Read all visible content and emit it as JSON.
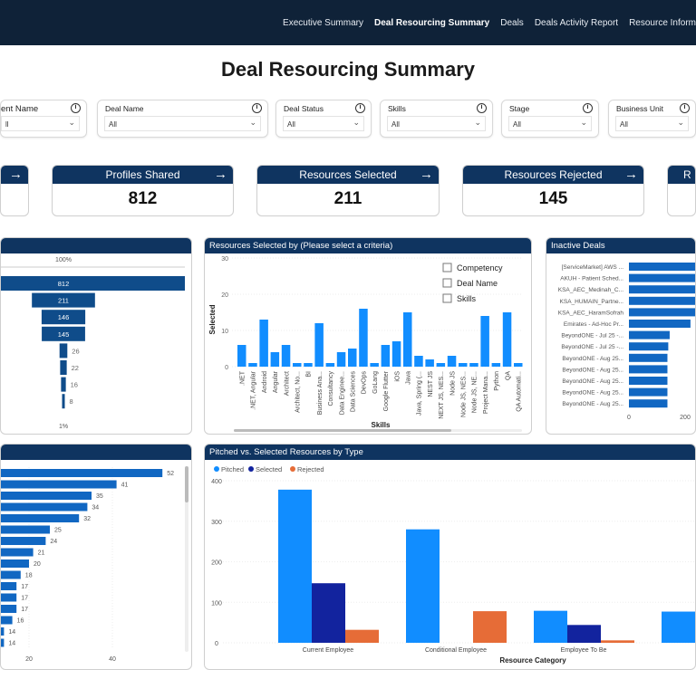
{
  "nav": {
    "items": [
      {
        "label": "Executive Summary"
      },
      {
        "label": "Deal Resourcing Summary",
        "active": true
      },
      {
        "label": "Deals"
      },
      {
        "label": "Deals Activity Report"
      },
      {
        "label": "Resource Inform"
      }
    ]
  },
  "page_title": "Deal Resourcing Summary",
  "filters": [
    {
      "label": "ent Name",
      "value": "ll"
    },
    {
      "label": "Deal Name",
      "value": "All"
    },
    {
      "label": "Deal Status",
      "value": "All"
    },
    {
      "label": "Skills",
      "value": "All"
    },
    {
      "label": "Stage",
      "value": "All"
    },
    {
      "label": "Business Unit",
      "value": "All"
    }
  ],
  "kpis": [
    {
      "label": "",
      "value": ""
    },
    {
      "label": "Profiles Shared",
      "value": "812"
    },
    {
      "label": "Resources Selected",
      "value": "211"
    },
    {
      "label": "Resources Rejected",
      "value": "145"
    },
    {
      "label": "R",
      "value": ""
    }
  ],
  "colors": {
    "header": "#0f3460",
    "nav": "#0f2238",
    "bar": "#1167c2",
    "pitched": "#118dff",
    "selected": "#12239e",
    "rejected": "#e66c37"
  },
  "chart_data": [
    {
      "type": "bar",
      "orientation": "funnel",
      "top_label": "100%",
      "bottom_label": "1%",
      "values": [
        812,
        211,
        146,
        145,
        26,
        22,
        16,
        8
      ]
    },
    {
      "type": "bar",
      "title": "Resources Selected by (Please select a criteria)",
      "xlabel": "Skills",
      "ylabel": "Selected",
      "ylim": [
        0,
        30
      ],
      "yticks": [
        0,
        10,
        20,
        30
      ],
      "categories": [
        ".NET",
        ".NET, Angular",
        "Android",
        "Angular",
        "Architect",
        "Architect, No...",
        "BI",
        "Business Ana...",
        "Consultancy",
        "Data Enginee...",
        "Data Sciences",
        "DevOps",
        "GoLang",
        "Google Flutter",
        "iOS",
        "Java",
        "Java, Spring (...",
        "NEST JS",
        "NEXT JS, NES...",
        "Node JS",
        "Node JS, NES...",
        "Node JS, NE...",
        "Project Mana...",
        "Python",
        "QA",
        "QA Automati..."
      ],
      "values": [
        6,
        1,
        13,
        4,
        6,
        1,
        1,
        12,
        1,
        4,
        5,
        16,
        1,
        6,
        7,
        15,
        3,
        2,
        1,
        3,
        1,
        1,
        14,
        1,
        15,
        1
      ],
      "criteria_options": [
        {
          "label": "Competency",
          "checked": false
        },
        {
          "label": "Deal Name",
          "checked": false
        },
        {
          "label": "Skills",
          "checked": false
        }
      ]
    },
    {
      "type": "bar",
      "orientation": "horizontal",
      "title": "Inactive Deals",
      "xticks": [
        0,
        200
      ],
      "categories": [
        "[ServiceMarket] AWS ...",
        "AKUH - Patient Sched...",
        "KSA_AEC_Medinah_C...",
        "KSA_HUMAIN_Partne...",
        "KSA_AEC_HaramSofrah",
        "Emirates - Ad-Hoc Pr...",
        "BeyondONE - Jul 25 -...",
        "BeyondONE - Jul 25 -...",
        "BeyondONE - Aug 25...",
        "BeyondONE - Aug 25...",
        "BeyondONE - Aug 25...",
        "BeyondONE - Aug 25...",
        "BeyondONE - Aug 25..."
      ],
      "values": [
        260,
        260,
        260,
        260,
        260,
        219,
        145,
        140,
        137,
        137,
        137,
        137,
        137
      ]
    },
    {
      "type": "bar",
      "orientation": "horizontal",
      "xticks": [
        20,
        40
      ],
      "values": [
        52,
        41,
        35,
        34,
        32,
        25,
        24,
        21,
        20,
        18,
        17,
        17,
        17,
        16,
        14,
        14
      ]
    },
    {
      "type": "bar",
      "title": "Pitched vs. Selected Resources by Type",
      "xlabel": "Resource Category",
      "ylim": [
        0,
        400
      ],
      "yticks": [
        0,
        100,
        200,
        300,
        400
      ],
      "legend": "top-left",
      "categories": [
        "Current Employee",
        "Conditional Employee",
        "Employee To Be",
        ""
      ],
      "series": [
        {
          "name": "Pitched",
          "values": [
            378,
            280,
            79,
            77
          ]
        },
        {
          "name": "Selected",
          "values": [
            147,
            0,
            44,
            null
          ]
        },
        {
          "name": "Rejected",
          "values": [
            32,
            78,
            6,
            null
          ]
        }
      ]
    }
  ]
}
